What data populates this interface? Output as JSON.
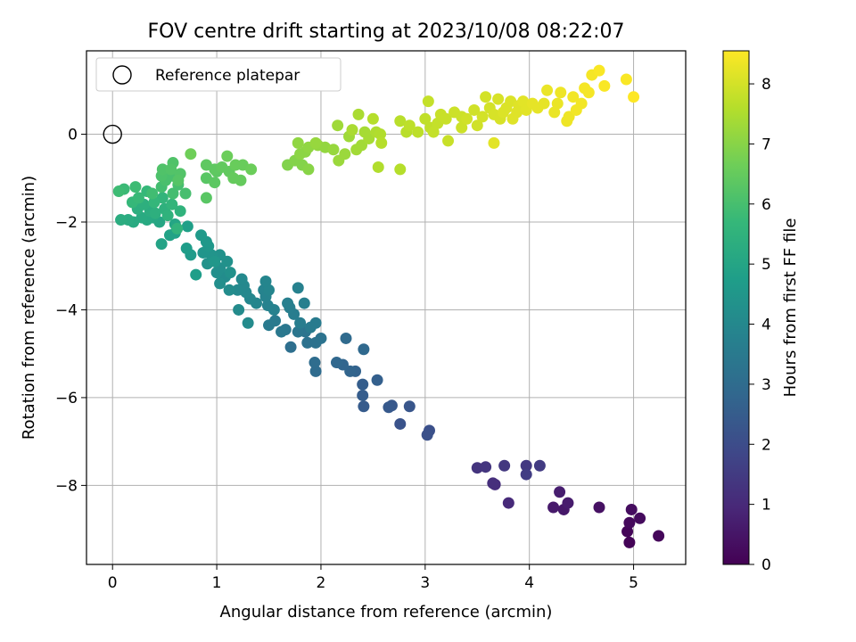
{
  "chart_data": {
    "type": "scatter",
    "title": "FOV centre drift starting at 2023/10/08 08:22:07",
    "xlabel": "Angular distance from reference (arcmin)",
    "ylabel": "Rotation from reference (arcmin)",
    "xlim": [
      -0.25,
      5.5
    ],
    "ylim": [
      -9.8,
      1.9
    ],
    "xticks": [
      "0",
      "1",
      "2",
      "3",
      "4",
      "5"
    ],
    "yticks": [
      "−8",
      "−6",
      "−4",
      "−2",
      "0"
    ],
    "grid": true,
    "legend": {
      "placement": "top-left",
      "label": "Reference platepar"
    },
    "reference_point": {
      "x": 0,
      "y": 0
    },
    "colorbar": {
      "label": "Hours from first FF file",
      "range": [
        0,
        8.55
      ],
      "ticks": [
        "0",
        "1",
        "2",
        "3",
        "4",
        "5",
        "6",
        "7",
        "8"
      ],
      "colormap": "viridis"
    },
    "points": [
      [
        4.96,
        -9.3,
        0.08
      ],
      [
        5.24,
        -9.15,
        0.15
      ],
      [
        4.94,
        -9.05,
        0.1
      ],
      [
        4.96,
        -8.85,
        0.2
      ],
      [
        5.06,
        -8.75,
        0.25
      ],
      [
        4.98,
        -8.55,
        0.3
      ],
      [
        4.67,
        -8.5,
        0.4
      ],
      [
        4.33,
        -8.55,
        0.55
      ],
      [
        4.23,
        -8.5,
        0.6
      ],
      [
        4.37,
        -8.4,
        0.65
      ],
      [
        4.29,
        -8.15,
        0.7
      ],
      [
        3.8,
        -8.4,
        1.0
      ],
      [
        3.67,
        -7.98,
        1.1
      ],
      [
        3.65,
        -7.95,
        1.15
      ],
      [
        3.5,
        -7.6,
        1.3
      ],
      [
        3.58,
        -7.58,
        1.35
      ],
      [
        3.76,
        -7.55,
        1.4
      ],
      [
        3.97,
        -7.55,
        1.45
      ],
      [
        4.1,
        -7.55,
        1.5
      ],
      [
        3.97,
        -7.75,
        1.55
      ],
      [
        3.04,
        -6.75,
        2.1
      ],
      [
        3.02,
        -6.85,
        2.15
      ],
      [
        2.76,
        -6.6,
        2.2
      ],
      [
        2.85,
        -6.2,
        2.3
      ],
      [
        2.68,
        -6.18,
        2.35
      ],
      [
        2.65,
        -6.22,
        2.4
      ],
      [
        2.41,
        -6.2,
        2.45
      ],
      [
        2.4,
        -5.95,
        2.5
      ],
      [
        2.4,
        -5.7,
        2.55
      ],
      [
        2.54,
        -5.6,
        2.6
      ],
      [
        2.33,
        -5.4,
        2.7
      ],
      [
        2.28,
        -5.4,
        2.75
      ],
      [
        2.21,
        -5.25,
        2.8
      ],
      [
        2.15,
        -5.2,
        2.85
      ],
      [
        2.41,
        -4.9,
        2.9
      ],
      [
        2.24,
        -4.65,
        2.95
      ],
      [
        1.95,
        -5.4,
        3.0
      ],
      [
        1.94,
        -5.2,
        3.05
      ],
      [
        1.71,
        -4.85,
        3.1
      ],
      [
        1.87,
        -4.75,
        3.2
      ],
      [
        1.95,
        -4.75,
        3.2
      ],
      [
        2.0,
        -4.65,
        3.25
      ],
      [
        1.85,
        -4.5,
        3.3
      ],
      [
        1.78,
        -4.5,
        3.35
      ],
      [
        1.66,
        -4.45,
        3.4
      ],
      [
        1.62,
        -4.5,
        3.45
      ],
      [
        1.5,
        -4.35,
        3.5
      ],
      [
        1.56,
        -4.25,
        3.5
      ],
      [
        1.95,
        -4.3,
        3.55
      ],
      [
        1.9,
        -4.4,
        3.55
      ],
      [
        1.8,
        -4.3,
        3.6
      ],
      [
        1.74,
        -4.1,
        3.6
      ],
      [
        1.7,
        -3.95,
        3.65
      ],
      [
        1.68,
        -3.85,
        3.7
      ],
      [
        1.84,
        -3.85,
        3.7
      ],
      [
        1.78,
        -3.5,
        3.75
      ],
      [
        1.55,
        -4.0,
        3.75
      ],
      [
        1.49,
        -3.9,
        3.8
      ],
      [
        1.47,
        -3.7,
        3.85
      ],
      [
        1.45,
        -3.55,
        3.85
      ],
      [
        1.5,
        -3.55,
        3.9
      ],
      [
        1.47,
        -3.35,
        3.9
      ],
      [
        1.38,
        -3.85,
        3.9
      ],
      [
        1.32,
        -3.75,
        3.95
      ],
      [
        1.28,
        -3.6,
        4.0
      ],
      [
        1.26,
        -3.45,
        4.0
      ],
      [
        1.2,
        -3.55,
        4.05
      ],
      [
        1.24,
        -3.3,
        4.05
      ],
      [
        1.3,
        -4.3,
        4.1
      ],
      [
        1.21,
        -4.0,
        4.1
      ],
      [
        1.12,
        -3.55,
        4.15
      ],
      [
        1.08,
        -3.25,
        4.15
      ],
      [
        1.03,
        -3.4,
        4.2
      ],
      [
        1.0,
        -3.15,
        4.25
      ],
      [
        1.03,
        -3.05,
        4.25
      ],
      [
        1.1,
        -2.9,
        4.3
      ],
      [
        1.13,
        -3.15,
        4.3
      ],
      [
        1.03,
        -2.75,
        4.35
      ],
      [
        0.91,
        -2.95,
        4.35
      ],
      [
        0.95,
        -2.75,
        4.4
      ],
      [
        0.87,
        -2.7,
        4.45
      ],
      [
        0.92,
        -2.55,
        4.5
      ],
      [
        0.98,
        -2.9,
        4.5
      ],
      [
        0.9,
        -2.45,
        4.55
      ],
      [
        0.85,
        -2.3,
        4.6
      ],
      [
        0.75,
        -2.75,
        4.65
      ],
      [
        0.71,
        -2.6,
        4.7
      ],
      [
        0.8,
        -3.2,
        4.75
      ],
      [
        0.72,
        -2.1,
        4.8
      ],
      [
        0.6,
        -2.25,
        4.85
      ],
      [
        0.55,
        -2.3,
        4.9
      ],
      [
        0.47,
        -2.5,
        4.95
      ],
      [
        0.6,
        -2.05,
        5.0
      ],
      [
        0.45,
        -2.0,
        5.05
      ],
      [
        0.39,
        -1.9,
        5.1
      ],
      [
        0.33,
        -1.95,
        5.15
      ],
      [
        0.28,
        -1.9,
        5.2
      ],
      [
        0.2,
        -2.0,
        5.2
      ],
      [
        0.15,
        -1.95,
        5.25
      ],
      [
        0.08,
        -1.95,
        5.3
      ],
      [
        0.36,
        -1.75,
        5.3
      ],
      [
        0.24,
        -1.7,
        5.35
      ],
      [
        0.3,
        -1.6,
        5.4
      ],
      [
        0.41,
        -1.8,
        5.4
      ],
      [
        0.5,
        -1.7,
        5.45
      ],
      [
        0.53,
        -1.85,
        5.5
      ],
      [
        0.65,
        -1.75,
        5.5
      ],
      [
        0.62,
        -2.15,
        5.55
      ],
      [
        0.57,
        -1.6,
        5.6
      ],
      [
        0.48,
        -1.45,
        5.6
      ],
      [
        0.4,
        -1.55,
        5.65
      ],
      [
        0.33,
        -1.3,
        5.7
      ],
      [
        0.19,
        -1.55,
        5.7
      ],
      [
        0.25,
        -1.45,
        5.75
      ],
      [
        0.11,
        -1.25,
        5.8
      ],
      [
        0.06,
        -1.3,
        5.85
      ],
      [
        0.22,
        -1.2,
        5.85
      ],
      [
        0.38,
        -1.35,
        5.9
      ],
      [
        0.47,
        -1.2,
        5.95
      ],
      [
        0.58,
        -1.35,
        5.95
      ],
      [
        0.63,
        -1.15,
        6.0
      ],
      [
        0.7,
        -1.35,
        6.0
      ],
      [
        0.57,
        -0.95,
        6.05
      ],
      [
        0.51,
        -1.05,
        6.05
      ],
      [
        0.47,
        -0.95,
        6.1
      ],
      [
        0.48,
        -0.8,
        6.15
      ],
      [
        0.58,
        -0.65,
        6.15
      ],
      [
        0.56,
        -0.8,
        6.2
      ],
      [
        0.65,
        -0.9,
        6.2
      ],
      [
        0.63,
        -1.05,
        6.25
      ],
      [
        0.9,
        -1.45,
        6.3
      ],
      [
        0.9,
        -1.0,
        6.3
      ],
      [
        0.98,
        -1.1,
        6.35
      ],
      [
        1.0,
        -0.85,
        6.35
      ],
      [
        0.9,
        -0.7,
        6.4
      ],
      [
        0.98,
        -0.8,
        6.4
      ],
      [
        1.05,
        -0.75,
        6.45
      ],
      [
        1.12,
        -0.85,
        6.45
      ],
      [
        1.16,
        -1.0,
        6.5
      ],
      [
        1.23,
        -1.05,
        6.5
      ],
      [
        1.18,
        -0.7,
        6.55
      ],
      [
        1.25,
        -0.7,
        6.55
      ],
      [
        1.33,
        -0.8,
        6.6
      ],
      [
        1.1,
        -0.5,
        6.6
      ],
      [
        0.75,
        -0.45,
        6.65
      ],
      [
        1.68,
        -0.7,
        6.9
      ],
      [
        1.75,
        -0.6,
        6.95
      ],
      [
        1.82,
        -0.7,
        6.95
      ],
      [
        1.88,
        -0.8,
        7.0
      ],
      [
        1.8,
        -0.45,
        7.05
      ],
      [
        1.85,
        -0.4,
        7.05
      ],
      [
        1.78,
        -0.2,
        7.1
      ],
      [
        1.88,
        -0.3,
        7.1
      ],
      [
        1.97,
        -0.25,
        7.15
      ],
      [
        2.04,
        -0.3,
        7.15
      ],
      [
        1.95,
        -0.2,
        7.2
      ],
      [
        2.12,
        -0.35,
        7.2
      ],
      [
        2.17,
        -0.6,
        7.25
      ],
      [
        2.23,
        -0.45,
        7.25
      ],
      [
        2.27,
        -0.05,
        7.3
      ],
      [
        2.16,
        0.2,
        7.3
      ],
      [
        2.34,
        -0.35,
        7.35
      ],
      [
        2.39,
        -0.25,
        7.35
      ],
      [
        2.46,
        -0.1,
        7.4
      ],
      [
        2.42,
        0.05,
        7.4
      ],
      [
        2.3,
        0.1,
        7.45
      ],
      [
        2.36,
        0.45,
        7.45
      ],
      [
        2.53,
        0.05,
        7.5
      ],
      [
        2.55,
        -0.75,
        7.55
      ],
      [
        2.57,
        0.0,
        7.55
      ],
      [
        2.58,
        -0.2,
        7.6
      ],
      [
        2.5,
        0.35,
        7.6
      ],
      [
        2.76,
        -0.8,
        7.6
      ],
      [
        2.76,
        0.3,
        7.65
      ],
      [
        2.82,
        0.05,
        7.65
      ],
      [
        2.85,
        0.2,
        7.7
      ],
      [
        2.93,
        0.05,
        7.7
      ],
      [
        3.0,
        0.35,
        7.75
      ],
      [
        3.05,
        0.15,
        7.75
      ],
      [
        3.03,
        0.75,
        7.8
      ],
      [
        3.08,
        0.05,
        7.8
      ],
      [
        3.12,
        0.25,
        7.8
      ],
      [
        3.15,
        0.45,
        7.85
      ],
      [
        3.22,
        -0.15,
        7.85
      ],
      [
        3.2,
        0.35,
        7.85
      ],
      [
        3.28,
        0.5,
        7.9
      ],
      [
        3.35,
        0.15,
        7.9
      ],
      [
        3.35,
        0.4,
        7.9
      ],
      [
        3.4,
        0.35,
        7.95
      ],
      [
        3.47,
        0.55,
        7.95
      ],
      [
        3.5,
        0.2,
        7.95
      ],
      [
        3.55,
        0.4,
        8.0
      ],
      [
        3.58,
        0.85,
        8.0
      ],
      [
        3.62,
        0.6,
        8.0
      ],
      [
        3.66,
        0.45,
        8.05
      ],
      [
        3.7,
        0.8,
        8.05
      ],
      [
        3.72,
        0.35,
        8.05
      ],
      [
        3.75,
        0.5,
        8.1
      ],
      [
        3.78,
        0.6,
        8.1
      ],
      [
        3.82,
        0.75,
        8.1
      ],
      [
        3.84,
        0.35,
        8.15
      ],
      [
        3.88,
        0.5,
        8.15
      ],
      [
        3.9,
        0.65,
        8.15
      ],
      [
        3.66,
        -0.2,
        8.2
      ],
      [
        3.94,
        0.75,
        8.2
      ],
      [
        3.97,
        0.55,
        8.2
      ],
      [
        4.03,
        0.7,
        8.25
      ],
      [
        4.08,
        0.6,
        8.25
      ],
      [
        4.14,
        0.7,
        8.25
      ],
      [
        4.17,
        1.0,
        8.3
      ],
      [
        4.24,
        0.5,
        8.3
      ],
      [
        4.27,
        0.7,
        8.3
      ],
      [
        4.3,
        0.95,
        8.35
      ],
      [
        4.36,
        0.3,
        8.35
      ],
      [
        4.38,
        0.4,
        8.35
      ],
      [
        4.42,
        0.85,
        8.4
      ],
      [
        4.45,
        0.55,
        8.4
      ],
      [
        4.5,
        0.7,
        8.4
      ],
      [
        4.53,
        1.05,
        8.45
      ],
      [
        4.57,
        0.95,
        8.45
      ],
      [
        4.6,
        1.35,
        8.45
      ],
      [
        4.67,
        1.45,
        8.5
      ],
      [
        4.72,
        1.1,
        8.5
      ],
      [
        4.93,
        1.25,
        8.5
      ],
      [
        5.0,
        0.85,
        8.55
      ]
    ]
  }
}
